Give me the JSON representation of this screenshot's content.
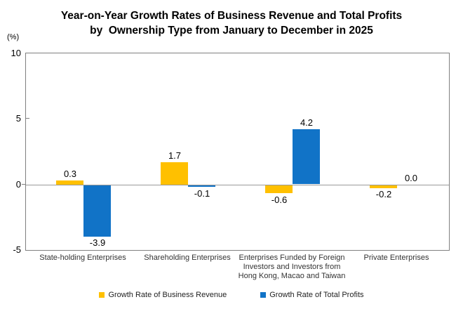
{
  "title": {
    "line1": "Year-on-Year Growth Rates of Business Revenue and Total Profits",
    "line2": "by  Ownership Type from January to December in 2025"
  },
  "chart_data": {
    "type": "bar",
    "title": "Year-on-Year Growth Rates of Business Revenue and Total Profits by Ownership Type from January to December in 2025",
    "xlabel": "",
    "ylabel": "(%)",
    "ylim": [
      -5,
      10
    ],
    "yticks": [
      10,
      5,
      0,
      -5
    ],
    "grid": "zero-line-only",
    "legend_position": "bottom",
    "categories": [
      "State-holding Enterprises",
      "Shareholding Enterprises",
      "Enterprises Funded by Foreign Investors and Investors from Hong Kong, Macao and Taiwan",
      "Private Enterprises"
    ],
    "category_lines": [
      [
        "State-holding Enterprises"
      ],
      [
        "Shareholding Enterprises"
      ],
      [
        "Enterprises Funded by Foreign",
        "Investors and Investors from",
        "Hong Kong, Macao and Taiwan"
      ],
      [
        "Private Enterprises"
      ]
    ],
    "series": [
      {
        "name": "Growth Rate of Business Revenue",
        "color": "#FFC000",
        "values": [
          0.3,
          1.7,
          -0.6,
          -0.2
        ],
        "labels": [
          "0.3",
          "1.7",
          "-0.6",
          "-0.2"
        ]
      },
      {
        "name": "Growth Rate of Total Profits",
        "color": "#1173C7",
        "values": [
          -3.9,
          -0.1,
          4.2,
          0.0
        ],
        "labels": [
          "-3.9",
          "-0.1",
          "4.2",
          "0.0"
        ]
      }
    ],
    "axis_color": "#808080",
    "zero_line_color": "#999999"
  }
}
